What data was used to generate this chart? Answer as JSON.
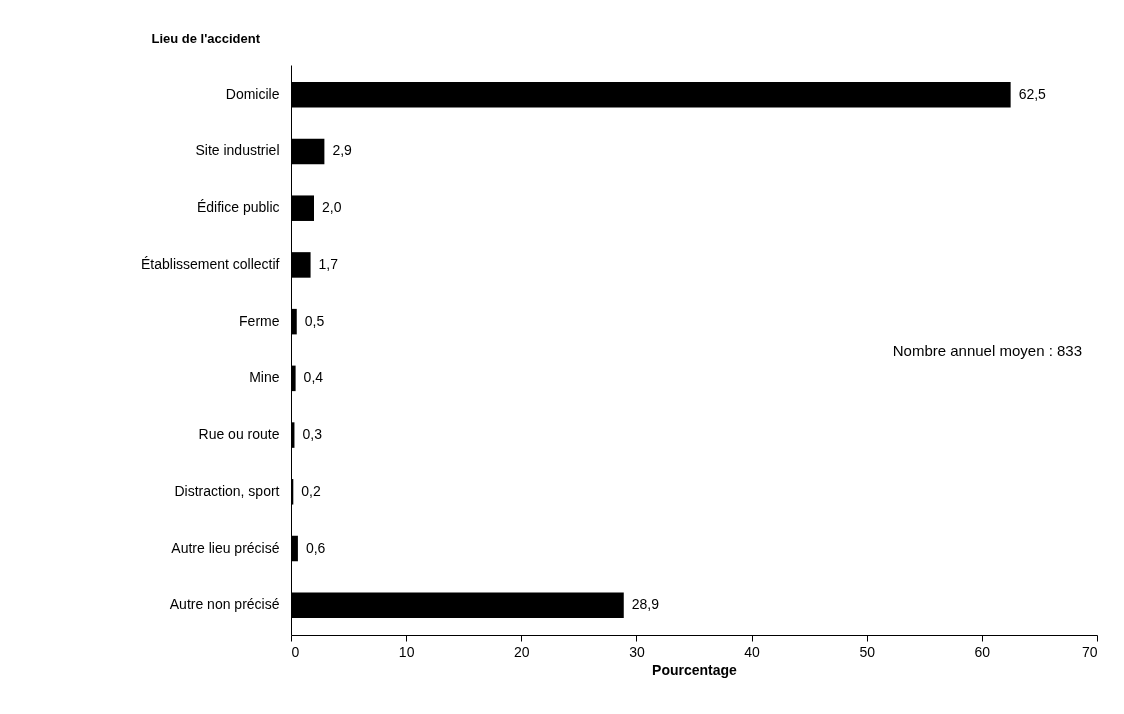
{
  "chart_data": {
    "type": "bar",
    "orientation": "horizontal",
    "ylabel": "Lieu de l'accident",
    "xlabel": "Pourcentage",
    "categories": [
      "Domicile",
      "Site industriel",
      "Édifice public",
      "Établissement collectif",
      "Ferme",
      "Mine",
      "Rue ou route",
      "Distraction, sport",
      "Autre lieu précisé",
      "Autre non précisé"
    ],
    "values": [
      62.5,
      2.9,
      2.0,
      1.7,
      0.5,
      0.4,
      0.3,
      0.2,
      0.6,
      28.9
    ],
    "value_labels": [
      "62,5",
      "2,9",
      "2,0",
      "1,7",
      "0,5",
      "0,4",
      "0,3",
      "0,2",
      "0,6",
      "28,9"
    ],
    "color": "#000000",
    "xlim": [
      0,
      70
    ],
    "xticks": [
      0,
      10,
      20,
      30,
      40,
      50,
      60,
      70
    ],
    "grid": false,
    "annotations": [
      "Nombre annuel moyen : 833"
    ]
  }
}
